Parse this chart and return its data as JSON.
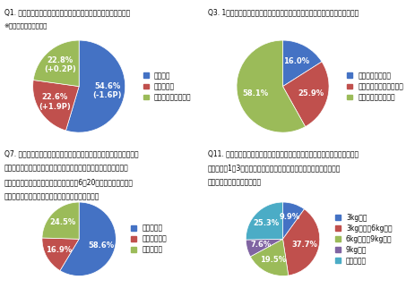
{
  "q1": {
    "title1": "Q1. いま、あなたは安倍内閣を支持しますか、支持しませんか。",
    "title2": "※（）内は前月比の増減",
    "values": [
      54.6,
      22.6,
      22.8
    ],
    "labels": [
      "54.6%\n(-1.6P)",
      "22.6%\n(+1.9P)",
      "22.8%\n(+0.2P)"
    ],
    "legend": [
      "支持する",
      "支持しない",
      "どちらとも言えない"
    ],
    "colors": [
      "#4472C4",
      "#C0504D",
      "#9BBB59"
    ],
    "startangle": 90
  },
  "q3": {
    "title1": "Q3. 1年前と比べて、あなたの今の暮らし向きはどう変わったと感じますか。",
    "title2": "",
    "values": [
      16.0,
      25.9,
      58.1
    ],
    "labels": [
      "16.0%",
      "25.9%",
      "58.1%"
    ],
    "legend": [
      "ゆとりが出てきた",
      "ゆとりがなくなってきた",
      "どちらとも言えない"
    ],
    "colors": [
      "#4472C4",
      "#C0504D",
      "#9BBB59"
    ],
    "startangle": 90
  },
  "q7": {
    "title1": "Q7. 加計問題、森友問題、自衛隊日報問題、さらに厚生労働省の労働",
    "title2": "時間調査改さんなど、安倍政権の足元を揺るがす問題が次から次へ",
    "title3": "と明らかになっています。安倍首相は、6月20日の通常国会閉会ま",
    "title4": "で政権を維持できると考えますか、考えませんか。",
    "values": [
      58.6,
      16.9,
      24.5
    ],
    "labels": [
      "58.6%",
      "16.9%",
      "24.5%"
    ],
    "legend": [
      "維持できる",
      "維持できない",
      "わからない"
    ],
    "colors": [
      "#4472C4",
      "#C0504D",
      "#9BBB59"
    ],
    "startangle": 90
  },
  "q11": {
    "title1": "Q11. ランドセルが重くなりすぎて、腰痛を訴える子どもも出てきています。",
    "title2": "いま、小学1～3年生の荷物は、平均してどれくらい重いランドセルを",
    "title3": "月負っていると思いますか。",
    "values": [
      9.9,
      37.7,
      19.5,
      7.6,
      25.3
    ],
    "labels": [
      "9.9%",
      "37.7%",
      "19.5%",
      "7.6%",
      "25.3%"
    ],
    "legend": [
      "3kg未満",
      "3kg以上～6kg未満",
      "6kg以上～9kg未満",
      "9kg以上",
      "わからない"
    ],
    "colors": [
      "#4472C4",
      "#C0504D",
      "#9BBB59",
      "#8064A2",
      "#4BACC6"
    ],
    "startangle": 90
  },
  "background": "#FFFFFF",
  "label_color": "#FFFFFF",
  "title_fontsize": 5.5,
  "legend_fontsize": 5.5,
  "label_fontsize": 6.0
}
